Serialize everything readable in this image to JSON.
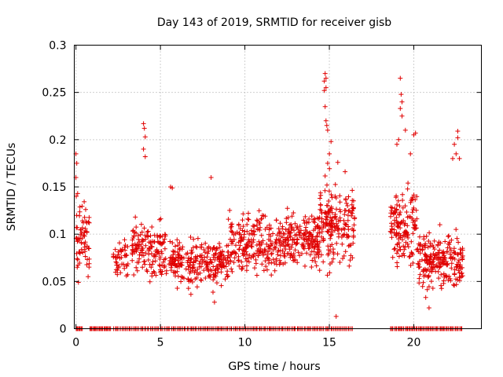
{
  "chart_data": {
    "type": "scatter",
    "title": "Day 143 of 2019, SRMTID for receiver gisb",
    "xlabel": "GPS time / hours",
    "ylabel": "SRMTID / TECUs",
    "xlim": [
      -0.1,
      24.0
    ],
    "ylim": [
      0,
      0.3
    ],
    "xticks": [
      "0",
      "5",
      "10",
      "15",
      "20"
    ],
    "yticks": [
      "0",
      "0.05",
      "0.1",
      "0.15",
      "0.2",
      "0.25",
      "0.3"
    ],
    "grid": true,
    "marker": "+",
    "color": "#e00000",
    "series": [
      {
        "name": "SRMTID",
        "segments": [
          {
            "x_start": 0.0,
            "x_end": 0.8,
            "base": 0.095,
            "spread": 0.05,
            "count": 70
          },
          {
            "x_start": 2.2,
            "x_end": 3.1,
            "base": 0.075,
            "spread": 0.03,
            "count": 45
          },
          {
            "x_start": 3.3,
            "x_end": 5.4,
            "base": 0.085,
            "spread": 0.035,
            "count": 150
          },
          {
            "x_start": 5.5,
            "x_end": 6.4,
            "base": 0.07,
            "spread": 0.03,
            "count": 70
          },
          {
            "x_start": 6.5,
            "x_end": 9.0,
            "base": 0.07,
            "spread": 0.03,
            "count": 180
          },
          {
            "x_start": 9.0,
            "x_end": 12.5,
            "base": 0.09,
            "spread": 0.035,
            "count": 260
          },
          {
            "x_start": 12.5,
            "x_end": 14.4,
            "base": 0.095,
            "spread": 0.035,
            "count": 170
          },
          {
            "x_start": 14.4,
            "x_end": 16.5,
            "base": 0.11,
            "spread": 0.05,
            "count": 190
          },
          {
            "x_start": 18.6,
            "x_end": 20.2,
            "base": 0.11,
            "spread": 0.045,
            "count": 140
          },
          {
            "x_start": 20.2,
            "x_end": 22.9,
            "base": 0.07,
            "spread": 0.035,
            "count": 230
          }
        ],
        "peaks": [
          {
            "x": 0.0,
            "y": 0.185
          },
          {
            "x": 0.05,
            "y": 0.175
          },
          {
            "x": 0.0,
            "y": 0.16
          },
          {
            "x": 0.1,
            "y": 0.143
          },
          {
            "x": 4.0,
            "y": 0.217
          },
          {
            "x": 4.05,
            "y": 0.212
          },
          {
            "x": 4.1,
            "y": 0.203
          },
          {
            "x": 4.0,
            "y": 0.19
          },
          {
            "x": 4.1,
            "y": 0.182
          },
          {
            "x": 5.6,
            "y": 0.15
          },
          {
            "x": 5.7,
            "y": 0.149
          },
          {
            "x": 8.0,
            "y": 0.16
          },
          {
            "x": 14.75,
            "y": 0.27
          },
          {
            "x": 14.8,
            "y": 0.265
          },
          {
            "x": 14.7,
            "y": 0.262
          },
          {
            "x": 14.8,
            "y": 0.255
          },
          {
            "x": 14.7,
            "y": 0.252
          },
          {
            "x": 14.75,
            "y": 0.235
          },
          {
            "x": 14.8,
            "y": 0.22
          },
          {
            "x": 14.85,
            "y": 0.215
          },
          {
            "x": 14.9,
            "y": 0.21
          },
          {
            "x": 15.1,
            "y": 0.198
          },
          {
            "x": 15.0,
            "y": 0.185
          },
          {
            "x": 14.9,
            "y": 0.175
          },
          {
            "x": 15.5,
            "y": 0.176
          },
          {
            "x": 15.4,
            "y": 0.013
          },
          {
            "x": 19.2,
            "y": 0.265
          },
          {
            "x": 19.25,
            "y": 0.248
          },
          {
            "x": 19.3,
            "y": 0.24
          },
          {
            "x": 19.2,
            "y": 0.233
          },
          {
            "x": 19.3,
            "y": 0.225
          },
          {
            "x": 19.1,
            "y": 0.2
          },
          {
            "x": 19.0,
            "y": 0.195
          },
          {
            "x": 19.5,
            "y": 0.21
          },
          {
            "x": 20.0,
            "y": 0.205
          },
          {
            "x": 20.1,
            "y": 0.207
          },
          {
            "x": 19.8,
            "y": 0.185
          },
          {
            "x": 22.4,
            "y": 0.195
          },
          {
            "x": 22.5,
            "y": 0.185
          },
          {
            "x": 22.6,
            "y": 0.209
          },
          {
            "x": 22.6,
            "y": 0.202
          },
          {
            "x": 22.3,
            "y": 0.18
          },
          {
            "x": 22.7,
            "y": 0.18
          },
          {
            "x": 8.2,
            "y": 0.028
          },
          {
            "x": 20.9,
            "y": 0.022
          }
        ],
        "zero_segments": [
          {
            "x_start": 0.0,
            "x_end": 0.4,
            "count": 8
          },
          {
            "x_start": 0.8,
            "x_end": 2.1,
            "count": 22
          },
          {
            "x_start": 2.2,
            "x_end": 16.4,
            "count": 170
          },
          {
            "x_start": 18.6,
            "x_end": 22.9,
            "count": 60
          }
        ]
      }
    ]
  }
}
